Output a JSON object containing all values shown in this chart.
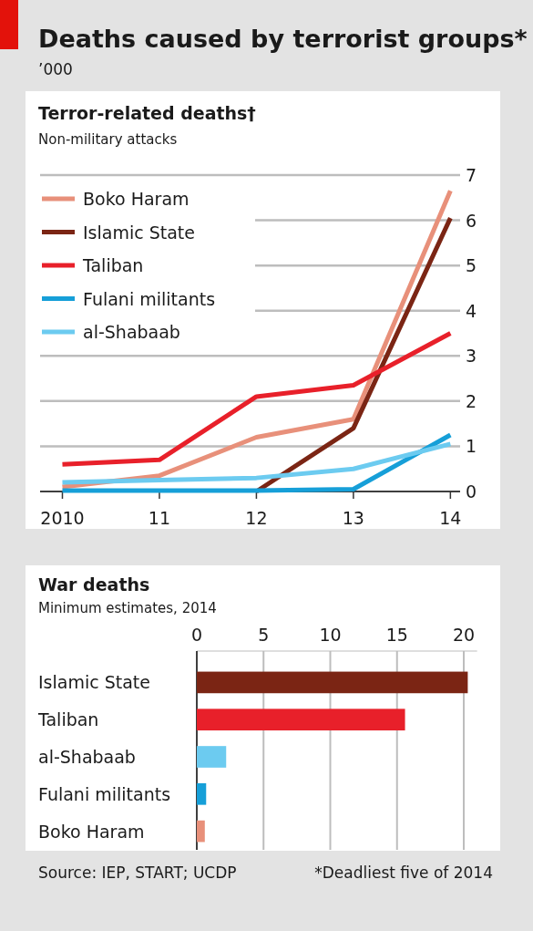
{
  "chart_data": [
    {
      "type": "line",
      "title": "Terror-related deaths†",
      "subtitle": "Non-military attacks",
      "annotations": [
        "Deaths caused by terrorist groups*",
        "’000"
      ],
      "x": [
        2010,
        2011,
        2012,
        2013,
        2014
      ],
      "xlim": [
        2009.77,
        2014.1
      ],
      "xticks": [
        2010,
        {
          "value": 2011,
          "label": "11"
        },
        {
          "value": 2012,
          "label": "12"
        },
        {
          "value": 2013,
          "label": "13"
        },
        {
          "value": 2014,
          "label": "14"
        }
      ],
      "ylim": [
        0,
        7
      ],
      "yticks": [
        0,
        1,
        2,
        3,
        4,
        5,
        6,
        7
      ],
      "grid": "y",
      "legend": "top left",
      "line_style": "solid",
      "series": [
        {
          "name": "Boko Haram",
          "color": "#e8907a",
          "values": [
            0.1,
            0.35,
            1.2,
            1.6,
            6.65
          ]
        },
        {
          "name": "Islamic State",
          "color": "#7b2514",
          "values": [
            null,
            null,
            0,
            1.4,
            6.05
          ]
        },
        {
          "name": "Taliban",
          "color": "#e8202a",
          "values": [
            0.6,
            0.7,
            2.1,
            2.35,
            3.5
          ]
        },
        {
          "name": "Fulani militants",
          "color": "#169fd8",
          "values": [
            0.02,
            0.02,
            0.02,
            0.05,
            1.25
          ]
        },
        {
          "name": "al-Shabaab",
          "color": "#6ccbf0",
          "values": [
            0.2,
            0.25,
            0.3,
            0.5,
            1.05
          ]
        }
      ]
    },
    {
      "type": "bar",
      "orientation": "horizontal",
      "title": "War deaths",
      "subtitle": "Minimum estimates, 2014",
      "annotations": [
        "Source: IEP, START; UCDP",
        "*Deadliest five of 2014"
      ],
      "categories": [
        "Islamic State",
        "Taliban",
        "al-Shabaab",
        "Fulani militants",
        "Boko Haram"
      ],
      "values": [
        20.3,
        15.6,
        2.2,
        0.7,
        0.6
      ],
      "colors": [
        "#7b2514",
        "#e8202a",
        "#6ccbf0",
        "#169fd8",
        "#e8907a"
      ],
      "xlim": [
        0,
        21
      ],
      "xticks": [
        0,
        5,
        10,
        15,
        20
      ],
      "grid": "x"
    }
  ]
}
